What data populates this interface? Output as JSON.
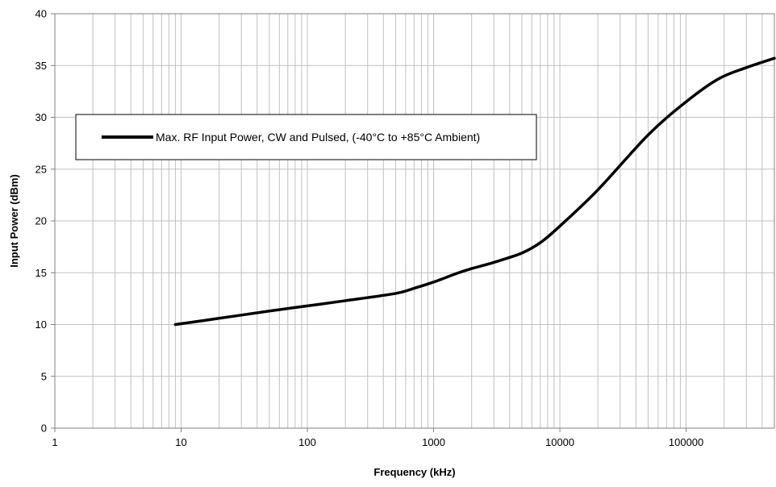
{
  "chart_data": {
    "type": "line",
    "title": "",
    "xlabel": "Frequency (kHz)",
    "ylabel": "Input Power (dBm)",
    "x_scale": "log",
    "xlim": [
      1,
      500000
    ],
    "ylim": [
      0,
      40
    ],
    "x_ticks": [
      1,
      10,
      100,
      1000,
      10000,
      100000
    ],
    "x_tick_labels": [
      "1",
      "10",
      "100",
      "1000",
      "10000",
      "100000"
    ],
    "y_ticks": [
      0,
      5,
      10,
      15,
      20,
      25,
      30,
      35,
      40
    ],
    "y_tick_labels": [
      "0",
      "5",
      "10",
      "15",
      "20",
      "25",
      "30",
      "35",
      "40"
    ],
    "grid": true,
    "legend_position": "upper-left",
    "colors": {
      "line": "#000000",
      "grid": "#c0c0c0",
      "frame": "#808080"
    },
    "series": [
      {
        "name": "Max. RF Input Power, CW and Pulsed, (-40°C to +85°C Ambient)",
        "x": [
          9,
          20,
          50,
          100,
          200,
          500,
          700,
          1000,
          1500,
          2000,
          3000,
          5000,
          7000,
          10000,
          20000,
          50000,
          100000,
          180000,
          300000,
          500000
        ],
        "y": [
          10.0,
          10.6,
          11.3,
          11.8,
          12.3,
          13.0,
          13.5,
          14.1,
          14.9,
          15.4,
          16.0,
          16.9,
          17.9,
          19.5,
          23.0,
          28.3,
          31.5,
          33.7,
          34.8,
          35.7
        ]
      }
    ]
  }
}
